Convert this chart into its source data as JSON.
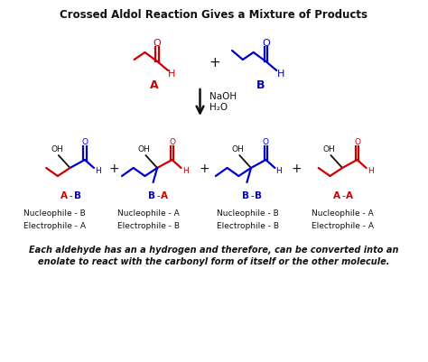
{
  "title": "Crossed Aldol Reaction Gives a Mixture of Products",
  "title_fontsize": 8.5,
  "bg_color": "#ffffff",
  "red": "#cc0000",
  "blue": "#0000cc",
  "black": "#111111",
  "italic_text_1": "Each aldehyde has an a hydrogen and therefore, can be converted into an",
  "italic_text_2": "enolate to react with the carbonyl form of itself or the other molecule.",
  "nucleophile_labels": [
    "Nucleophile - B",
    "Nucleophile - A",
    "Nucleophile - B",
    "Nucleophile - A"
  ],
  "electrophile_labels": [
    "Electrophile - A",
    "Electrophile - B",
    "Electrophile - B",
    "Electrophile - A"
  ],
  "prod_label_left": [
    "A",
    "B",
    "B",
    "A"
  ],
  "prod_label_right": [
    "B",
    "A",
    "B",
    "A"
  ],
  "prod_label_lcolor": [
    "#cc0000",
    "#0000cc",
    "#0000cc",
    "#cc0000"
  ],
  "prod_label_rcolor": [
    "#0000cc",
    "#cc0000",
    "#0000cc",
    "#cc0000"
  ]
}
